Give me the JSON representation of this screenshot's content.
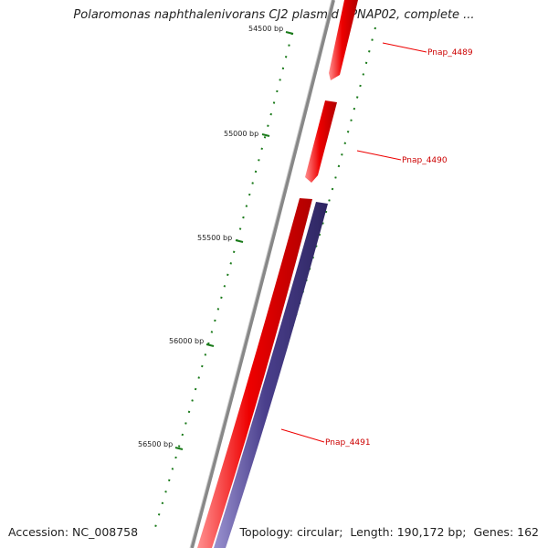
{
  "title": "Polaromonas naphthalenivorans CJ2 plasmid pPNAP02, complete ...",
  "footer": {
    "accession_label": "Accession:",
    "accession": "NC_008758",
    "topology_label": "Topology:",
    "topology": "circular",
    "length_label": "Length:",
    "length": "190,172 bp",
    "genes_label": "Genes:",
    "genes": "162"
  },
  "ticks": [
    {
      "label": "54500 bp"
    },
    {
      "label": "55000 bp"
    },
    {
      "label": "55500 bp"
    },
    {
      "label": "56000 bp"
    },
    {
      "label": "56500 bp"
    }
  ],
  "genes": [
    {
      "name": "Pnap_4489",
      "strand": "forward",
      "color": "#ee0000"
    },
    {
      "name": "Pnap_4490",
      "strand": "forward",
      "color": "#ee0000"
    },
    {
      "name": "Pnap_4491",
      "strand": "reverse",
      "color": "#4a3f8c"
    }
  ],
  "colors": {
    "backbone": "#888888",
    "forward_gene": "#ee0000",
    "reverse_gene": "#4a3f8c",
    "tick": "#1a7a1a",
    "label_line": "#ee0000"
  }
}
